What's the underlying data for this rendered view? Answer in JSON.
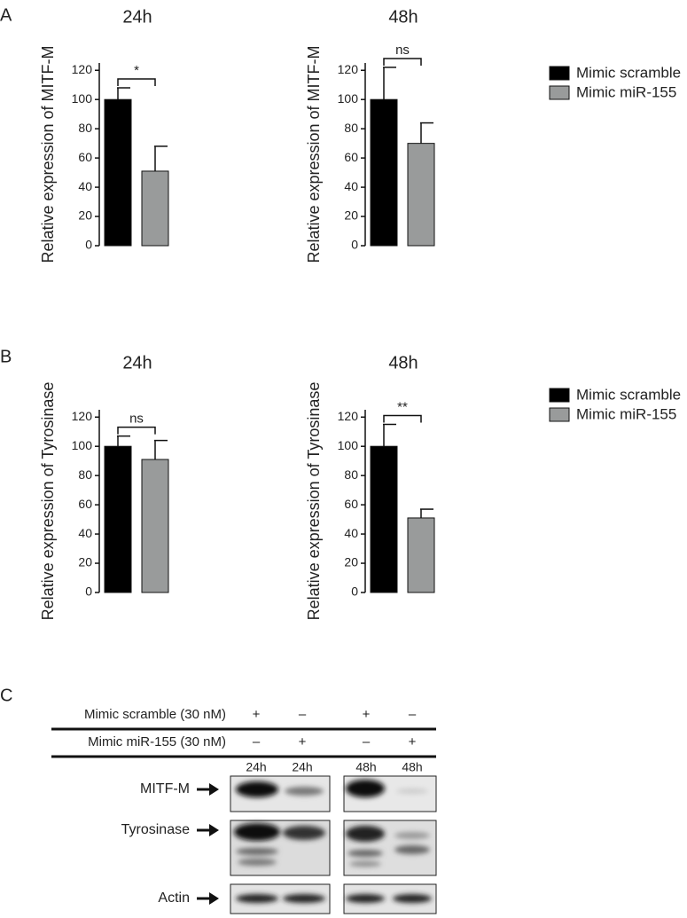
{
  "panel_labels": [
    "A",
    "B",
    "C"
  ],
  "chart_data": [
    {
      "type": "bar",
      "title": "24h",
      "y_label": "Relative expression of MITF-M",
      "categories": [
        null,
        null
      ],
      "values": [
        100,
        51
      ],
      "errors": [
        8,
        17
      ],
      "colors": [
        "#000000",
        "#999b9b"
      ],
      "annotation": "*",
      "ylim": [
        0,
        125
      ],
      "yticks": [
        0,
        20,
        40,
        60,
        80,
        100,
        120
      ]
    },
    {
      "type": "bar",
      "title": "48h",
      "y_label": "Relative expression of MITF-M",
      "categories": [
        null,
        null
      ],
      "values": [
        100,
        70
      ],
      "errors": [
        22,
        14
      ],
      "colors": [
        "#000000",
        "#999b9b"
      ],
      "annotation": "ns",
      "ylim": [
        0,
        125
      ],
      "yticks": [
        0,
        20,
        40,
        60,
        80,
        100,
        120
      ]
    },
    {
      "type": "bar",
      "title": "24h",
      "y_label": "Relative expression of Tyrosinase",
      "categories": [
        null,
        null
      ],
      "values": [
        100,
        91
      ],
      "errors": [
        7,
        13
      ],
      "colors": [
        "#000000",
        "#999b9b"
      ],
      "annotation": "ns",
      "ylim": [
        0,
        125
      ],
      "yticks": [
        0,
        20,
        40,
        60,
        80,
        100,
        120
      ]
    },
    {
      "type": "bar",
      "title": "48h",
      "y_label": "Relative expression of Tyrosinase",
      "categories": [
        null,
        null
      ],
      "values": [
        100,
        51
      ],
      "errors": [
        15,
        6
      ],
      "colors": [
        "#000000",
        "#999b9b"
      ],
      "annotation": "**",
      "ylim": [
        0,
        125
      ],
      "yticks": [
        0,
        20,
        40,
        60,
        80,
        100,
        120
      ]
    }
  ],
  "legends": [
    {
      "items": [
        {
          "name": "Mimic scramble",
          "color": "#000000"
        },
        {
          "name": "Mimic miR-155",
          "color": "#999b9b"
        }
      ]
    },
    {
      "items": [
        {
          "name": "Mimic scramble",
          "color": "#000000"
        },
        {
          "name": "Mimic miR-155",
          "color": "#999b9b"
        }
      ]
    }
  ],
  "blot": {
    "conditions": [
      {
        "label": "Mimic scramble (30 nM)",
        "signs": [
          "+",
          "–",
          "+",
          "–"
        ]
      },
      {
        "label": "Mimic miR-155 (30 nM)",
        "signs": [
          "–",
          "+",
          "–",
          "+"
        ]
      }
    ],
    "lanes": [
      "24h",
      "24h",
      "48h",
      "48h"
    ],
    "rows": [
      "MITF-M",
      "Tyrosinase",
      "Actin"
    ]
  }
}
